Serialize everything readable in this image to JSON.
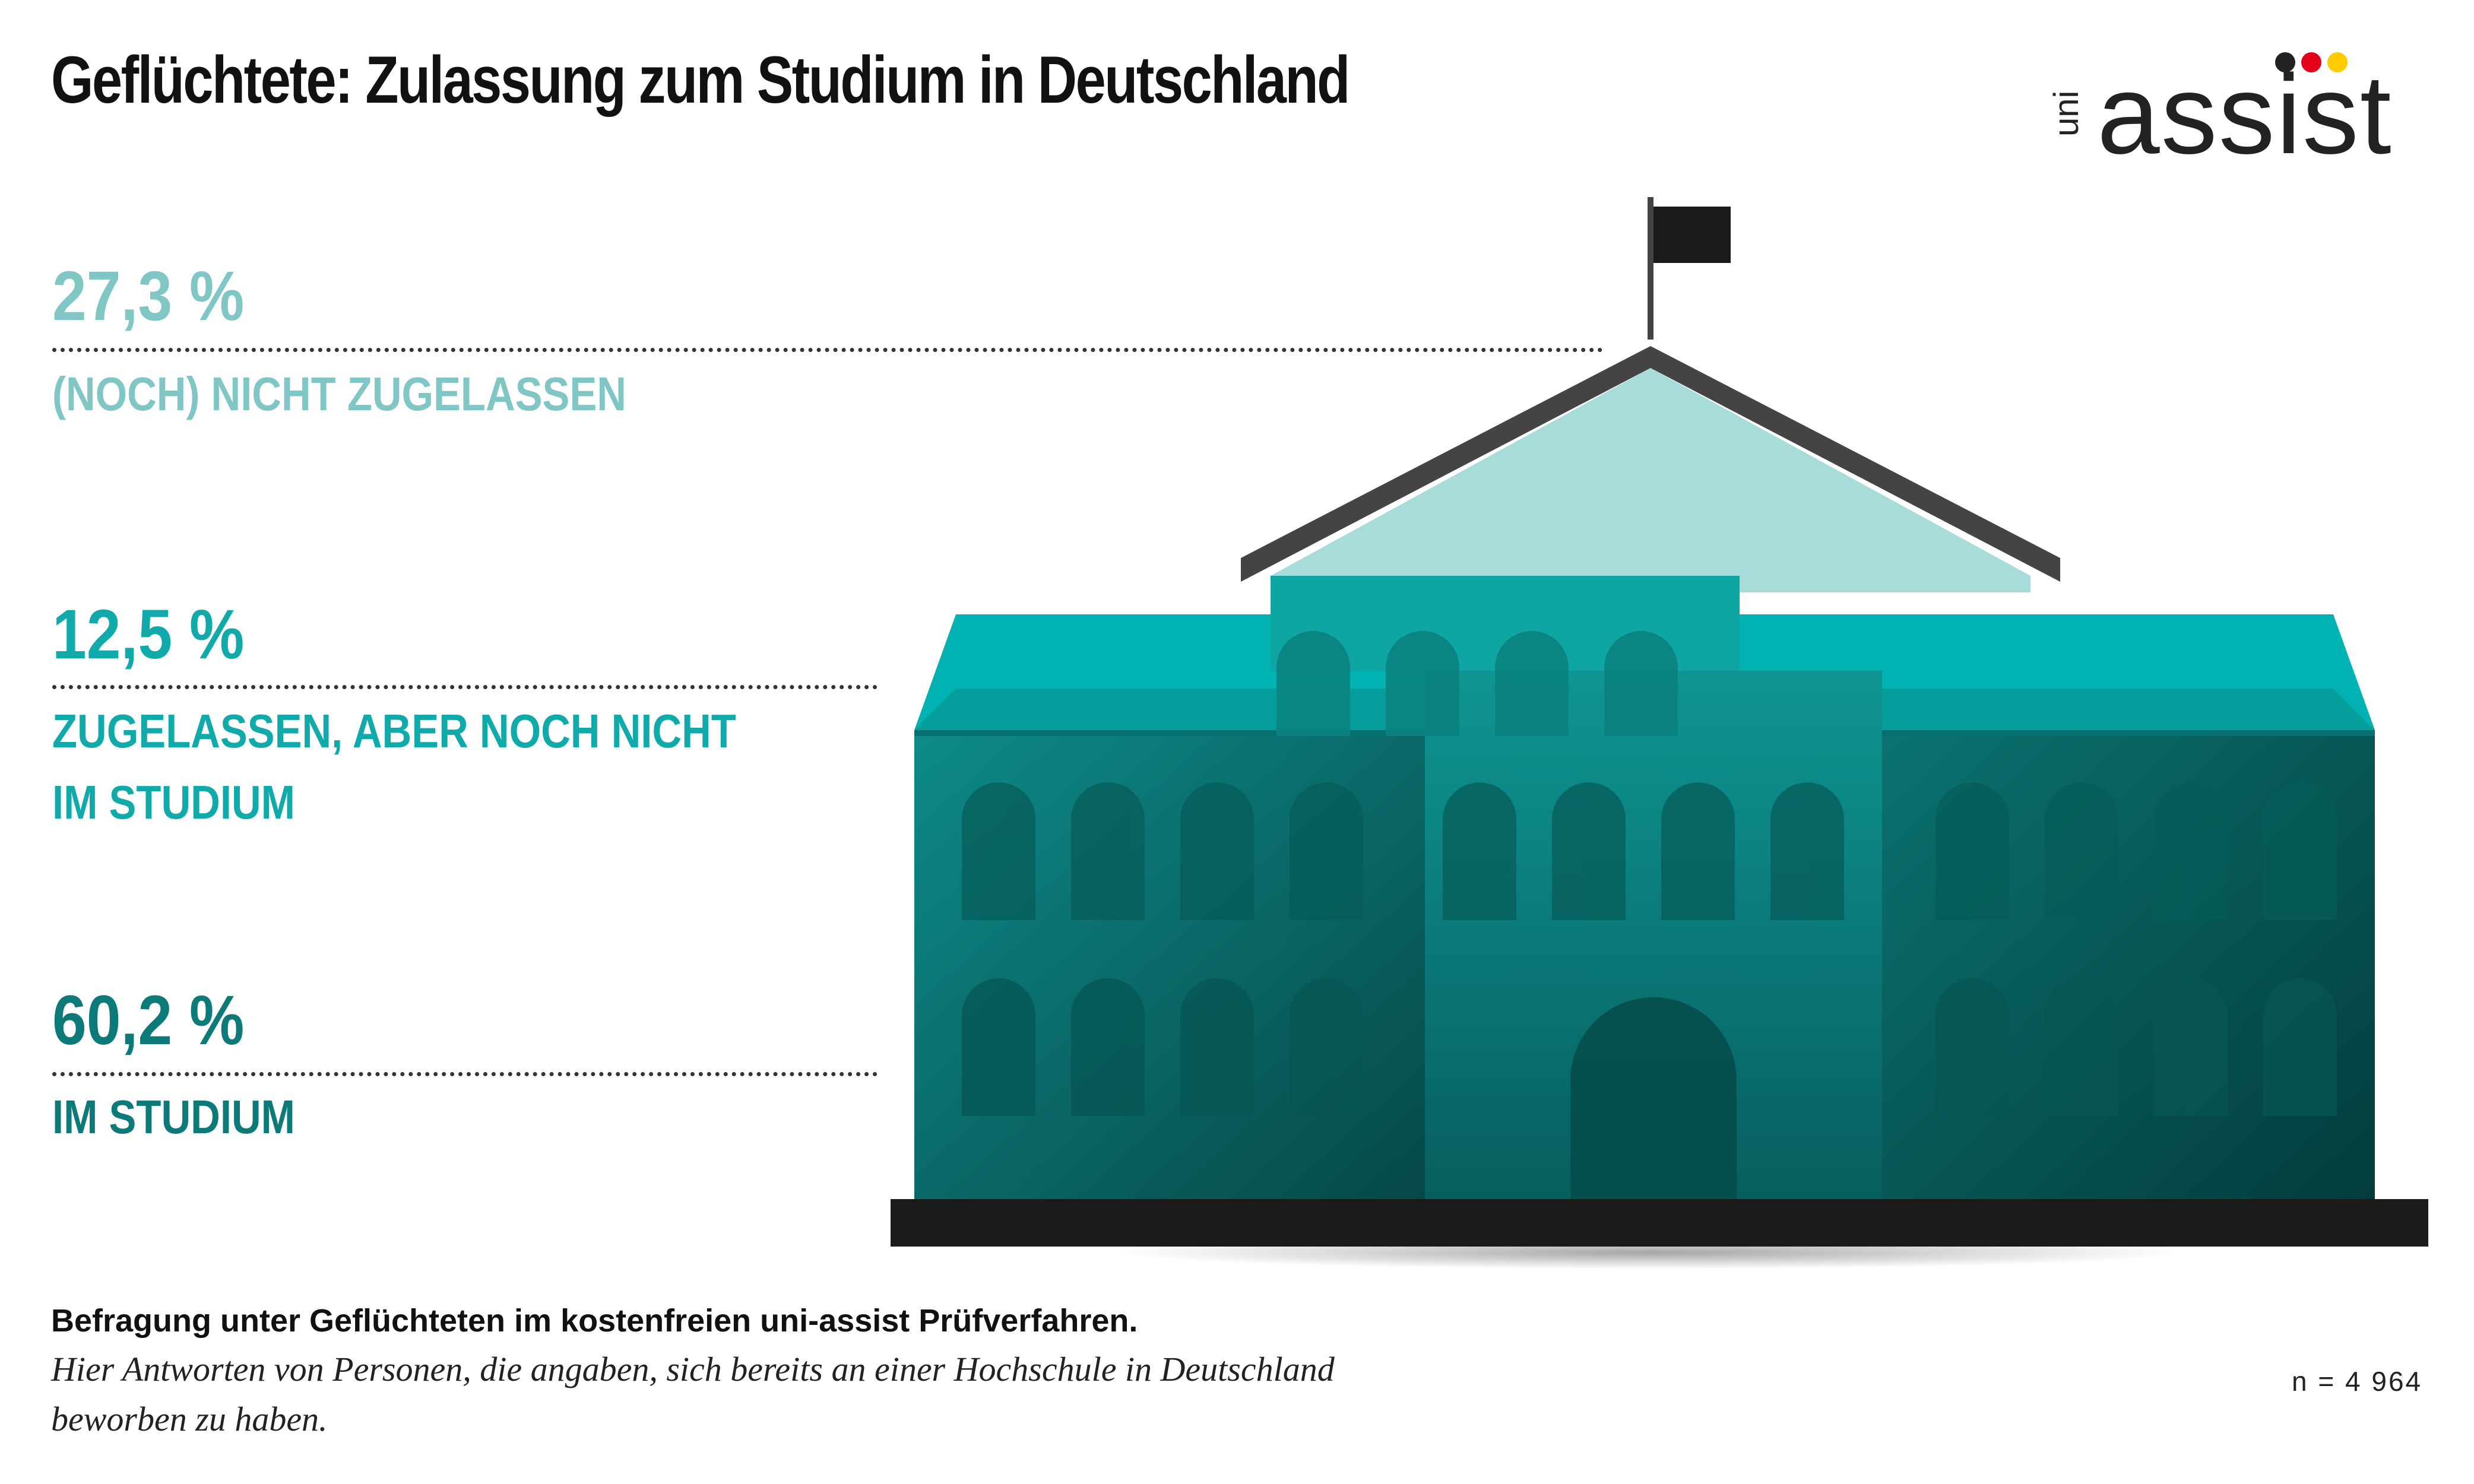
{
  "title": "Geflüchtete: Zulassung zum Studium in Deutschland",
  "logo": {
    "prefix": "uni",
    "wordmark": "assist"
  },
  "chart_data": {
    "type": "pictograph",
    "unit": "%",
    "categories": [
      "(NOCH) NICHT ZUGELASSEN",
      "ZUGELASSEN, ABER NOCH NICHT IM STUDIUM",
      "IM STUDIUM"
    ],
    "values": [
      27.3,
      12.5,
      60.2
    ],
    "value_labels": [
      "27,3 %",
      "12,5 %",
      "60,2 %"
    ],
    "label_lines": [
      [
        "(NOCH) NICHT ZUGELASSEN"
      ],
      [
        "ZUGELASSEN, ABER NOCH NICHT",
        "IM STUDIUM"
      ],
      [
        "IM STUDIUM"
      ]
    ],
    "colors": [
      "#7fc6c4",
      "#10aaaa",
      "#0b7a78"
    ]
  },
  "footer": {
    "note_bold": "Befragung unter Geflüchteten im kostenfreien uni-assist Prüfverfahren.",
    "note_italic": "Hier Antworten von Personen, die angaben, sich bereits an einer Hochschule in Deutschland beworben zu haben.",
    "sample": "n = 4 964"
  },
  "palette": {
    "roof_light": "#a8dcdb",
    "roof_mid": "#00b2b2",
    "wall": "#0a7d7b",
    "wall_dark": "#075656",
    "base": "#1a1a1a",
    "pole": "#444444"
  }
}
